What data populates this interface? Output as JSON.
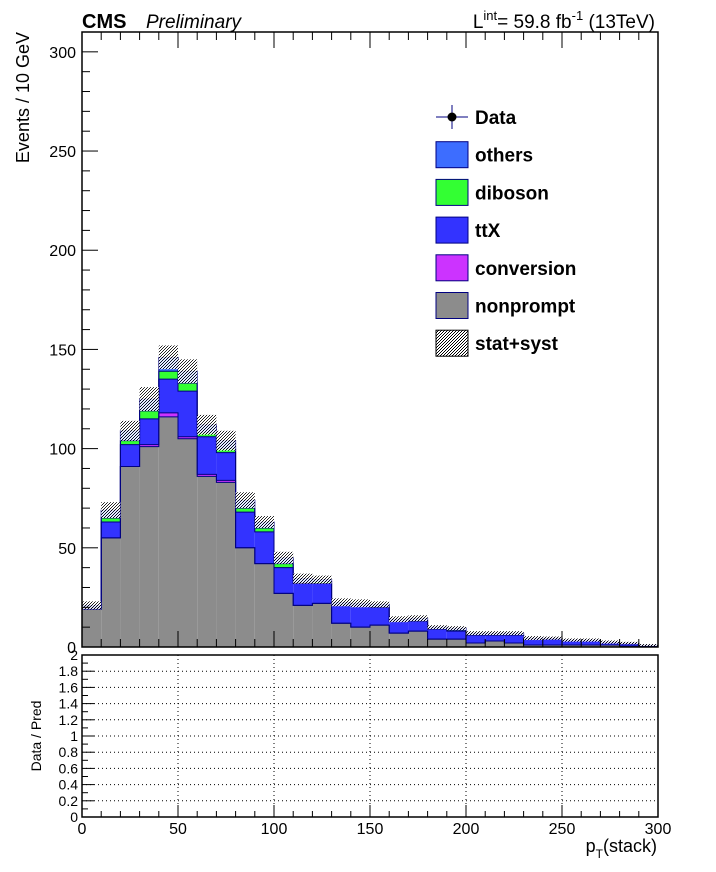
{
  "header": {
    "experiment": "CMS",
    "status": "Preliminary",
    "lumi_prefix": "L",
    "lumi_sup": "int",
    "lumi_value": "= 59.8 fb",
    "lumi_exp": "-1",
    "lumi_suffix": " (13TeV)"
  },
  "colors": {
    "others": "#3d6dff",
    "diboson": "#33ff33",
    "ttX": "#3333ff",
    "conversion": "#cc33ff",
    "nonprompt": "#8c8c8c",
    "outline": "#000080",
    "data": "#000000"
  },
  "chart_data": [
    {
      "type": "bar",
      "stacked": true,
      "ylabel": "Events / 10 GeV",
      "xlim": [
        0,
        300
      ],
      "ylim": [
        0,
        310
      ],
      "y_ticks": [
        0,
        50,
        100,
        150,
        200,
        250,
        300
      ],
      "legend_position": "top-right",
      "legend": [
        {
          "label": "Data",
          "kind": "data"
        },
        {
          "label": "others",
          "kind": "fill",
          "color_key": "others"
        },
        {
          "label": "diboson",
          "kind": "fill",
          "color_key": "diboson"
        },
        {
          "label": "ttX",
          "kind": "fill",
          "color_key": "ttX"
        },
        {
          "label": "conversion",
          "kind": "fill",
          "color_key": "conversion"
        },
        {
          "label": "nonprompt",
          "kind": "fill",
          "color_key": "nonprompt"
        },
        {
          "label": "stat+syst",
          "kind": "hatch"
        }
      ],
      "bin_edges": [
        0,
        10,
        20,
        30,
        40,
        50,
        60,
        70,
        80,
        90,
        100,
        110,
        120,
        130,
        140,
        150,
        160,
        170,
        180,
        190,
        200,
        210,
        220,
        230,
        240,
        250,
        260,
        270,
        280,
        290,
        300
      ],
      "series": [
        {
          "name": "nonprompt",
          "values": [
            19,
            55,
            91,
            101,
            116,
            105,
            86,
            83,
            50,
            42,
            27,
            21,
            22,
            12,
            10,
            11,
            7,
            8,
            4,
            4,
            2,
            3,
            2,
            1,
            1,
            1,
            1,
            1,
            0.5,
            0.5
          ]
        },
        {
          "name": "conversion",
          "values": [
            0,
            0,
            0,
            1,
            2,
            1,
            1,
            1,
            0,
            0,
            0,
            0,
            0,
            0,
            0,
            0,
            0,
            0,
            0,
            0,
            0,
            0,
            0,
            0,
            0,
            0,
            0,
            0,
            0,
            0
          ]
        },
        {
          "name": "ttX",
          "values": [
            0.5,
            8,
            11,
            13,
            17,
            23,
            19,
            14,
            18,
            16,
            13,
            11,
            10,
            9,
            11,
            9,
            6,
            5,
            5,
            4,
            4,
            3,
            4,
            3,
            3,
            2,
            2,
            1,
            1,
            0.5
          ]
        },
        {
          "name": "diboson",
          "values": [
            0.5,
            2,
            2,
            4,
            4,
            4,
            2,
            2,
            2,
            2,
            2,
            0.5,
            1,
            0.5,
            0,
            0.5,
            0,
            0.5,
            0,
            0.5,
            0,
            0,
            0,
            0,
            0,
            0,
            0,
            0,
            0,
            0
          ]
        },
        {
          "name": "others",
          "values": [
            1,
            4,
            5,
            6,
            7,
            6,
            4,
            4,
            4,
            3,
            3,
            2,
            1,
            1,
            1,
            1,
            1,
            1,
            1,
            1,
            1,
            1,
            1,
            0.5,
            0.5,
            0.5,
            0.5,
            0.5,
            0.5,
            0
          ]
        }
      ],
      "band_halfwidth": [
        2,
        4,
        5,
        6,
        6,
        6,
        5,
        5,
        4,
        3,
        3,
        2.5,
        2,
        2,
        2,
        1.5,
        1.5,
        1.5,
        1,
        1,
        1,
        1,
        1,
        1,
        0.8,
        0.8,
        0.8,
        0.8,
        0.6,
        0.5
      ]
    },
    {
      "type": "line",
      "ylabel": "Data / Pred",
      "xlabel": "p_T(stack)",
      "xlim": [
        0,
        300
      ],
      "ylim": [
        0,
        2
      ],
      "y_ticks": [
        0,
        0.2,
        0.4,
        0.6,
        0.8,
        1,
        1.2,
        1.4,
        1.6,
        1.8,
        2
      ],
      "y_tick_labels": [
        "0",
        "0.2",
        "0.4",
        "0.6",
        "0.8",
        "1",
        "1.2",
        "1.4",
        "1.6",
        "1.8",
        "2"
      ],
      "x_ticks": [
        0,
        50,
        100,
        150,
        200,
        250,
        300
      ],
      "grid": true,
      "values": []
    }
  ]
}
